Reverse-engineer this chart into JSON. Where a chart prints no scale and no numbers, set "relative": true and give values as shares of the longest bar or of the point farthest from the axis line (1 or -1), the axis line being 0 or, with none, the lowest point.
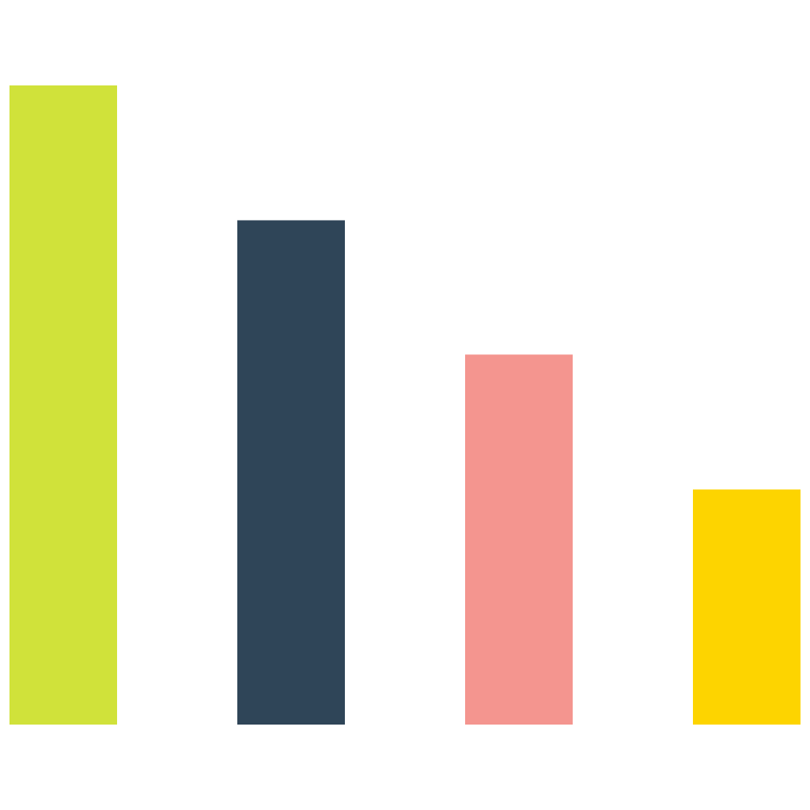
{
  "chart_data": {
    "type": "bar",
    "relative": true,
    "categories": [
      null,
      null,
      null,
      null
    ],
    "values": [
      1,
      0.789,
      0.579,
      0.368
    ],
    "colors": [
      "#d0e23a",
      "#2f4558",
      "#f4958f",
      "#fdd400"
    ]
  }
}
